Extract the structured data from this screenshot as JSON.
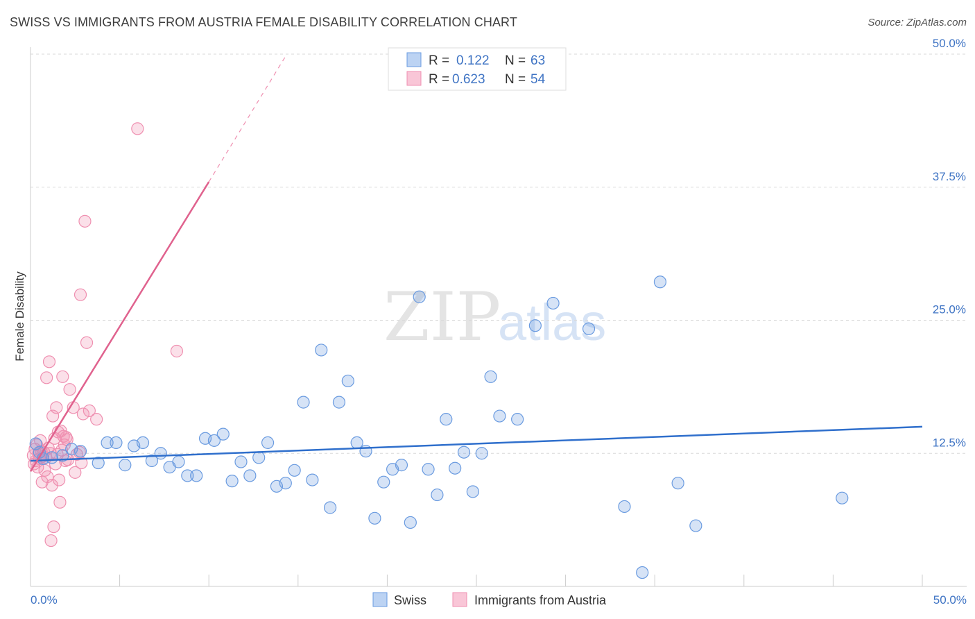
{
  "header": {
    "title": "SWISS VS IMMIGRANTS FROM AUSTRIA FEMALE DISABILITY CORRELATION CHART",
    "source": "Source: ZipAtlas.com"
  },
  "colors": {
    "swiss": "#6a9be0",
    "swiss_line": "#2f6fcc",
    "austria": "#ef8fb0",
    "austria_line": "#e0628e",
    "tick": "#3f74c4",
    "grid": "#d9d9d9"
  },
  "legend": {
    "swiss": {
      "r_label": "R =",
      "r_value": "0.122",
      "n_label": "N =",
      "n_value": "63"
    },
    "austria": {
      "r_label": "R =",
      "r_value": "0.623",
      "n_label": "N =",
      "n_value": "54"
    }
  },
  "bottom_legend": {
    "swiss": "Swiss",
    "austria": "Immigrants from Austria"
  },
  "watermark": {
    "zip": "ZIP",
    "atlas": "atlas"
  },
  "chart_data": {
    "type": "scatter",
    "title": "SWISS VS IMMIGRANTS FROM AUSTRIA FEMALE DISABILITY CORRELATION CHART",
    "xlabel": "",
    "ylabel": "Female Disability",
    "xlim": [
      0,
      50
    ],
    "ylim": [
      0,
      50
    ],
    "x_tick_labels": [
      "0.0%",
      "50.0%"
    ],
    "y_ticks": [
      12.5,
      25.0,
      37.5,
      50.0
    ],
    "y_tick_labels": [
      "12.5%",
      "25.0%",
      "37.5%",
      "50.0%"
    ],
    "series": [
      {
        "name": "Swiss",
        "R": 0.122,
        "N": 63,
        "trend": {
          "x": [
            0,
            50
          ],
          "y": [
            11.8,
            15.0
          ]
        },
        "points": [
          [
            0.3,
            13.4
          ],
          [
            0.5,
            12.6
          ],
          [
            0.7,
            12.0
          ],
          [
            1.2,
            12.1
          ],
          [
            1.8,
            12.3
          ],
          [
            2.3,
            12.9
          ],
          [
            2.8,
            12.7
          ],
          [
            3.8,
            11.6
          ],
          [
            4.3,
            13.5
          ],
          [
            4.8,
            13.5
          ],
          [
            5.3,
            11.4
          ],
          [
            5.8,
            13.2
          ],
          [
            6.3,
            13.5
          ],
          [
            6.8,
            11.8
          ],
          [
            7.3,
            12.5
          ],
          [
            7.8,
            11.2
          ],
          [
            8.3,
            11.7
          ],
          [
            8.8,
            10.4
          ],
          [
            9.3,
            10.4
          ],
          [
            9.8,
            13.9
          ],
          [
            10.3,
            13.7
          ],
          [
            10.8,
            14.3
          ],
          [
            11.3,
            9.9
          ],
          [
            11.8,
            11.7
          ],
          [
            12.3,
            10.4
          ],
          [
            12.8,
            12.1
          ],
          [
            13.3,
            13.5
          ],
          [
            13.8,
            9.4
          ],
          [
            14.3,
            9.7
          ],
          [
            14.8,
            10.9
          ],
          [
            15.3,
            17.3
          ],
          [
            15.8,
            10.0
          ],
          [
            16.3,
            22.2
          ],
          [
            16.8,
            7.4
          ],
          [
            17.3,
            17.3
          ],
          [
            17.8,
            19.3
          ],
          [
            18.3,
            13.5
          ],
          [
            18.8,
            12.7
          ],
          [
            19.3,
            6.4
          ],
          [
            19.8,
            9.8
          ],
          [
            20.3,
            11.0
          ],
          [
            20.8,
            11.4
          ],
          [
            21.3,
            6.0
          ],
          [
            21.8,
            27.2
          ],
          [
            22.3,
            11.0
          ],
          [
            22.8,
            8.6
          ],
          [
            23.3,
            15.7
          ],
          [
            23.8,
            11.1
          ],
          [
            24.3,
            12.6
          ],
          [
            24.8,
            8.9
          ],
          [
            25.3,
            12.5
          ],
          [
            25.8,
            19.7
          ],
          [
            26.3,
            16.0
          ],
          [
            27.3,
            15.7
          ],
          [
            28.3,
            24.5
          ],
          [
            29.3,
            26.6
          ],
          [
            31.3,
            24.2
          ],
          [
            33.3,
            7.5
          ],
          [
            34.3,
            1.3
          ],
          [
            35.3,
            28.6
          ],
          [
            36.3,
            9.7
          ],
          [
            37.3,
            5.7
          ],
          [
            45.5,
            8.3
          ]
        ]
      },
      {
        "name": "Immigrants from Austria",
        "R": 0.623,
        "N": 54,
        "trend": {
          "x": [
            0,
            10
          ],
          "y": [
            10.8,
            38.0
          ]
        },
        "trend_dashed": {
          "x": [
            10,
            14.3
          ],
          "y": [
            38.0,
            49.8
          ]
        },
        "points": [
          [
            0.15,
            12.3
          ],
          [
            0.2,
            11.5
          ],
          [
            0.25,
            12.9
          ],
          [
            0.3,
            11.8
          ],
          [
            0.35,
            13.3
          ],
          [
            0.4,
            11.2
          ],
          [
            0.45,
            12.5
          ],
          [
            0.5,
            12.0
          ],
          [
            0.55,
            13.7
          ],
          [
            0.6,
            12.7
          ],
          [
            0.65,
            9.8
          ],
          [
            0.7,
            12.2
          ],
          [
            0.75,
            12.6
          ],
          [
            0.8,
            10.9
          ],
          [
            0.85,
            12.1
          ],
          [
            0.9,
            19.6
          ],
          [
            0.95,
            10.3
          ],
          [
            1.0,
            13.0
          ],
          [
            1.05,
            21.1
          ],
          [
            1.1,
            12.5
          ],
          [
            1.15,
            4.3
          ],
          [
            1.2,
            9.5
          ],
          [
            1.25,
            16.0
          ],
          [
            1.3,
            5.6
          ],
          [
            1.35,
            13.9
          ],
          [
            1.4,
            11.5
          ],
          [
            1.45,
            16.8
          ],
          [
            1.5,
            12.4
          ],
          [
            1.55,
            14.5
          ],
          [
            1.6,
            10.0
          ],
          [
            1.65,
            7.9
          ],
          [
            1.7,
            14.6
          ],
          [
            1.75,
            12.8
          ],
          [
            1.8,
            19.7
          ],
          [
            1.85,
            14.1
          ],
          [
            1.9,
            13.3
          ],
          [
            1.95,
            11.8
          ],
          [
            2.0,
            14.0
          ],
          [
            2.05,
            13.8
          ],
          [
            2.1,
            11.9
          ],
          [
            2.2,
            18.5
          ],
          [
            2.4,
            16.8
          ],
          [
            2.5,
            10.7
          ],
          [
            2.6,
            12.4
          ],
          [
            2.75,
            12.6
          ],
          [
            2.8,
            27.4
          ],
          [
            2.85,
            11.6
          ],
          [
            2.95,
            16.2
          ],
          [
            3.05,
            34.3
          ],
          [
            3.15,
            22.9
          ],
          [
            3.3,
            16.5
          ],
          [
            3.7,
            15.7
          ],
          [
            6.0,
            43.0
          ],
          [
            8.2,
            22.1
          ]
        ]
      }
    ]
  }
}
